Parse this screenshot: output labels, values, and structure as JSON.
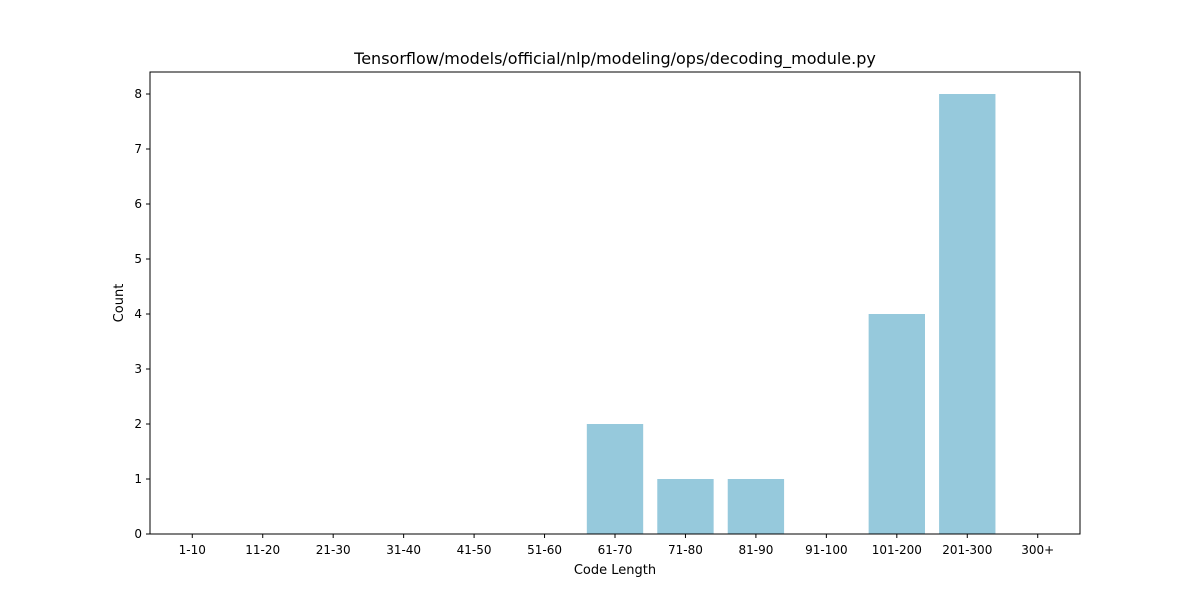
{
  "chart_data": {
    "type": "bar",
    "title": "Tensorflow/models/official/nlp/modeling/ops/decoding_module.py",
    "xlabel": "Code Length",
    "ylabel": "Count",
    "categories": [
      "1-10",
      "11-20",
      "21-30",
      "31-40",
      "41-50",
      "51-60",
      "61-70",
      "71-80",
      "81-90",
      "91-100",
      "101-200",
      "201-300",
      "300+"
    ],
    "values": [
      0,
      0,
      0,
      0,
      0,
      0,
      2,
      1,
      1,
      0,
      4,
      8,
      0
    ],
    "ylim": [
      0,
      8.4
    ],
    "yticks": [
      0,
      1,
      2,
      3,
      4,
      5,
      6,
      7,
      8
    ],
    "grid": false,
    "bar_color": "#96c9dc"
  }
}
